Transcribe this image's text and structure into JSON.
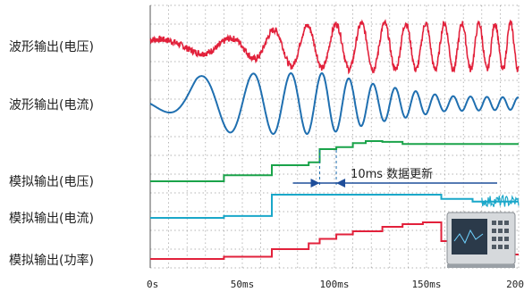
{
  "chart_data": {
    "type": "line",
    "x_unit": "ms",
    "x_range": [
      0,
      200
    ],
    "x_ticks": [
      {
        "value": 0,
        "label": "0s"
      },
      {
        "value": 50,
        "label": "50ms"
      },
      {
        "value": 100,
        "label": "100ms"
      },
      {
        "value": 150,
        "label": "150ms"
      },
      {
        "value": 200,
        "label": "200"
      }
    ],
    "grid": true,
    "series": [
      {
        "name": "波形输出(电压)",
        "color": "#e2213b",
        "style": "noisy-chirp",
        "amplitude": [
          0.3,
          0.3,
          0.35,
          0.85,
          1.0,
          1.0,
          1.0
        ],
        "amp_x": [
          0,
          25,
          45,
          75,
          110,
          150,
          200
        ]
      },
      {
        "name": "波形输出(电流)",
        "color": "#1f6fb0",
        "style": "chirp",
        "amplitude": [
          0.0,
          0.9,
          1.0,
          1.0,
          0.6,
          0.25,
          0.2
        ],
        "amp_x": [
          0,
          25,
          60,
          95,
          125,
          160,
          200
        ]
      },
      {
        "name": "模拟输出(电压)",
        "color": "#1aa34a",
        "style": "step",
        "x": [
          0,
          40,
          40,
          66,
          66,
          86,
          86,
          92,
          92,
          101,
          101,
          110,
          110,
          117,
          117,
          126,
          126,
          137,
          137,
          200
        ],
        "y": [
          0,
          0,
          0.15,
          0.15,
          0.4,
          0.4,
          0.47,
          0.47,
          0.8,
          0.8,
          0.85,
          0.85,
          0.95,
          0.95,
          1.0,
          1.0,
          0.98,
          0.98,
          0.93,
          0.93
        ]
      },
      {
        "name": "模拟输出(电流)",
        "color": "#1aa7c9",
        "style": "step",
        "x": [
          0,
          40,
          40,
          66,
          66,
          158,
          158,
          175,
          175,
          200
        ],
        "y": [
          0,
          0,
          0.08,
          0.08,
          1.0,
          1.0,
          0.82,
          0.82,
          0.7,
          0.7
        ],
        "tail_noise": true
      },
      {
        "name": "模拟输出(功率)",
        "color": "#e2213b",
        "style": "step",
        "x": [
          0,
          40,
          40,
          66,
          66,
          86,
          86,
          92,
          92,
          101,
          101,
          110,
          110,
          126,
          126,
          137,
          137,
          148,
          148,
          158,
          158,
          166,
          166,
          200
        ],
        "y": [
          0,
          0,
          0.05,
          0.05,
          0.22,
          0.22,
          0.35,
          0.35,
          0.45,
          0.45,
          0.55,
          0.55,
          0.62,
          0.62,
          0.72,
          0.72,
          0.78,
          0.78,
          0.82,
          0.82,
          0.4,
          0.4,
          0.1,
          0.1
        ]
      }
    ],
    "annotations": [
      {
        "text": "10ms 数据更新",
        "x_from": 92,
        "x_to": 101
      }
    ]
  }
}
